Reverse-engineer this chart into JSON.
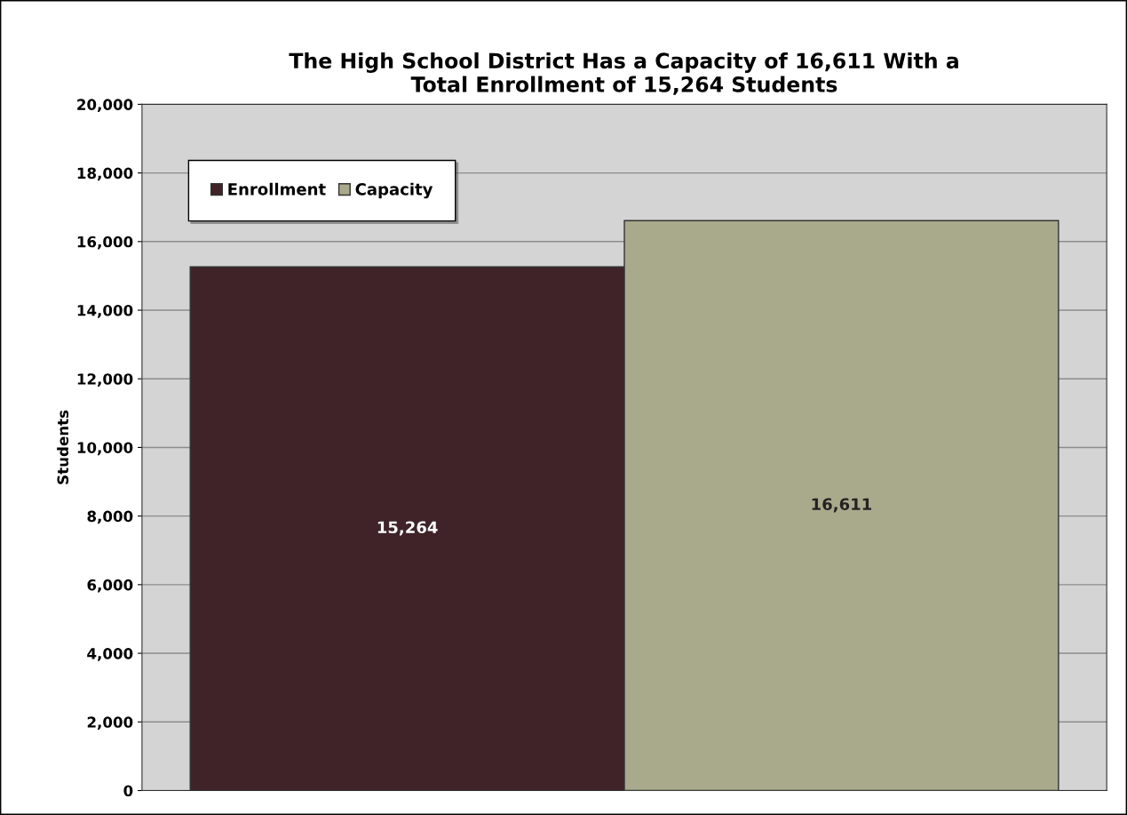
{
  "chart_data": {
    "type": "bar",
    "title": "The High School District Has a Capacity of 16,611 With a\nTotal Enrollment of 15,264 Students",
    "ylabel": "Students",
    "categories": [
      null
    ],
    "series": [
      {
        "name": "Enrollment",
        "color": "#3f2329",
        "values": [
          15264
        ],
        "value_labels": [
          "15,264"
        ]
      },
      {
        "name": "Capacity",
        "color": "#a9a98c",
        "values": [
          16611
        ],
        "value_labels": [
          "16,611"
        ]
      }
    ],
    "ylim": [
      0,
      20000
    ],
    "yticks": [
      0,
      {
        "value": 2000,
        "label": "2,000"
      },
      {
        "value": 4000,
        "label": "4,000"
      },
      {
        "value": 6000,
        "label": "6,000"
      },
      {
        "value": 8000,
        "label": "8,000"
      },
      {
        "value": 10000,
        "label": "10,000"
      },
      {
        "value": 12000,
        "label": "12,000"
      },
      {
        "value": 14000,
        "label": "14,000"
      },
      {
        "value": 16000,
        "label": "16,000"
      },
      {
        "value": 18000,
        "label": "18,000"
      },
      {
        "value": 20000,
        "label": "20,000"
      }
    ],
    "grid": "y",
    "legend": "top left"
  }
}
